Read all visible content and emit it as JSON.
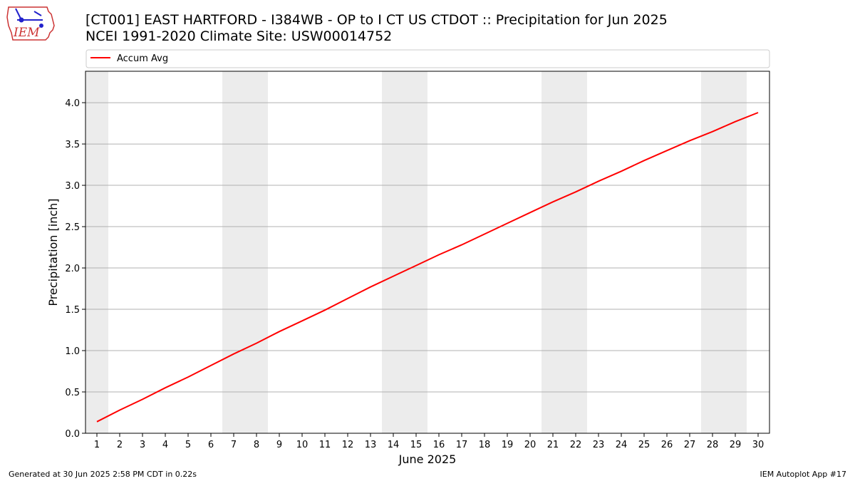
{
  "logo": {
    "text": "IEM",
    "icon": "iowa-state-outline-logo",
    "color": "#cc3333"
  },
  "header": {
    "title_line1": "[CT001] EAST HARTFORD - I384WB - OP to I CT US  CTDOT :: Precipitation for Jun 2025",
    "title_line2": "NCEI 1991-2020 Climate Site: USW00014752"
  },
  "footer": {
    "left": "Generated at 30 Jun 2025 2:58 PM CDT in 0.22s",
    "right": "IEM Autoplot App #17"
  },
  "chart_data": {
    "type": "line",
    "xlabel": "June 2025",
    "ylabel": "Precipitation [inch]",
    "ylim": [
      0,
      4.38
    ],
    "yticks": [
      "0.0",
      "0.5",
      "1.0",
      "1.5",
      "2.0",
      "2.5",
      "3.0",
      "3.5",
      "4.0"
    ],
    "x": [
      1,
      2,
      3,
      4,
      5,
      6,
      7,
      8,
      9,
      10,
      11,
      12,
      13,
      14,
      15,
      16,
      17,
      18,
      19,
      20,
      21,
      22,
      23,
      24,
      25,
      26,
      27,
      28,
      29,
      30
    ],
    "xtick_labels": [
      "1",
      "2",
      "3",
      "4",
      "5",
      "6",
      "7",
      "8",
      "9",
      "10",
      "11",
      "12",
      "13",
      "14",
      "15",
      "16",
      "17",
      "18",
      "19",
      "20",
      "21",
      "22",
      "23",
      "24",
      "25",
      "26",
      "27",
      "28",
      "29",
      "30"
    ],
    "weekend_bands": [
      [
        1,
        1
      ],
      [
        7,
        8
      ],
      [
        14,
        15
      ],
      [
        21,
        22
      ],
      [
        28,
        29
      ]
    ],
    "grid": "horizontal",
    "legend_position": "top",
    "series": [
      {
        "name": "Accum Avg",
        "color": "#ff0000",
        "values": [
          0.14,
          0.28,
          0.41,
          0.55,
          0.68,
          0.82,
          0.96,
          1.09,
          1.23,
          1.36,
          1.49,
          1.63,
          1.77,
          1.9,
          2.03,
          2.16,
          2.28,
          2.41,
          2.54,
          2.67,
          2.8,
          2.92,
          3.05,
          3.17,
          3.3,
          3.42,
          3.54,
          3.65,
          3.77,
          3.88
        ]
      }
    ],
    "colors": {
      "band": "#ececec",
      "grid": "#b0b0b0",
      "frame": "#000000",
      "legend_border": "#cccccc"
    }
  }
}
